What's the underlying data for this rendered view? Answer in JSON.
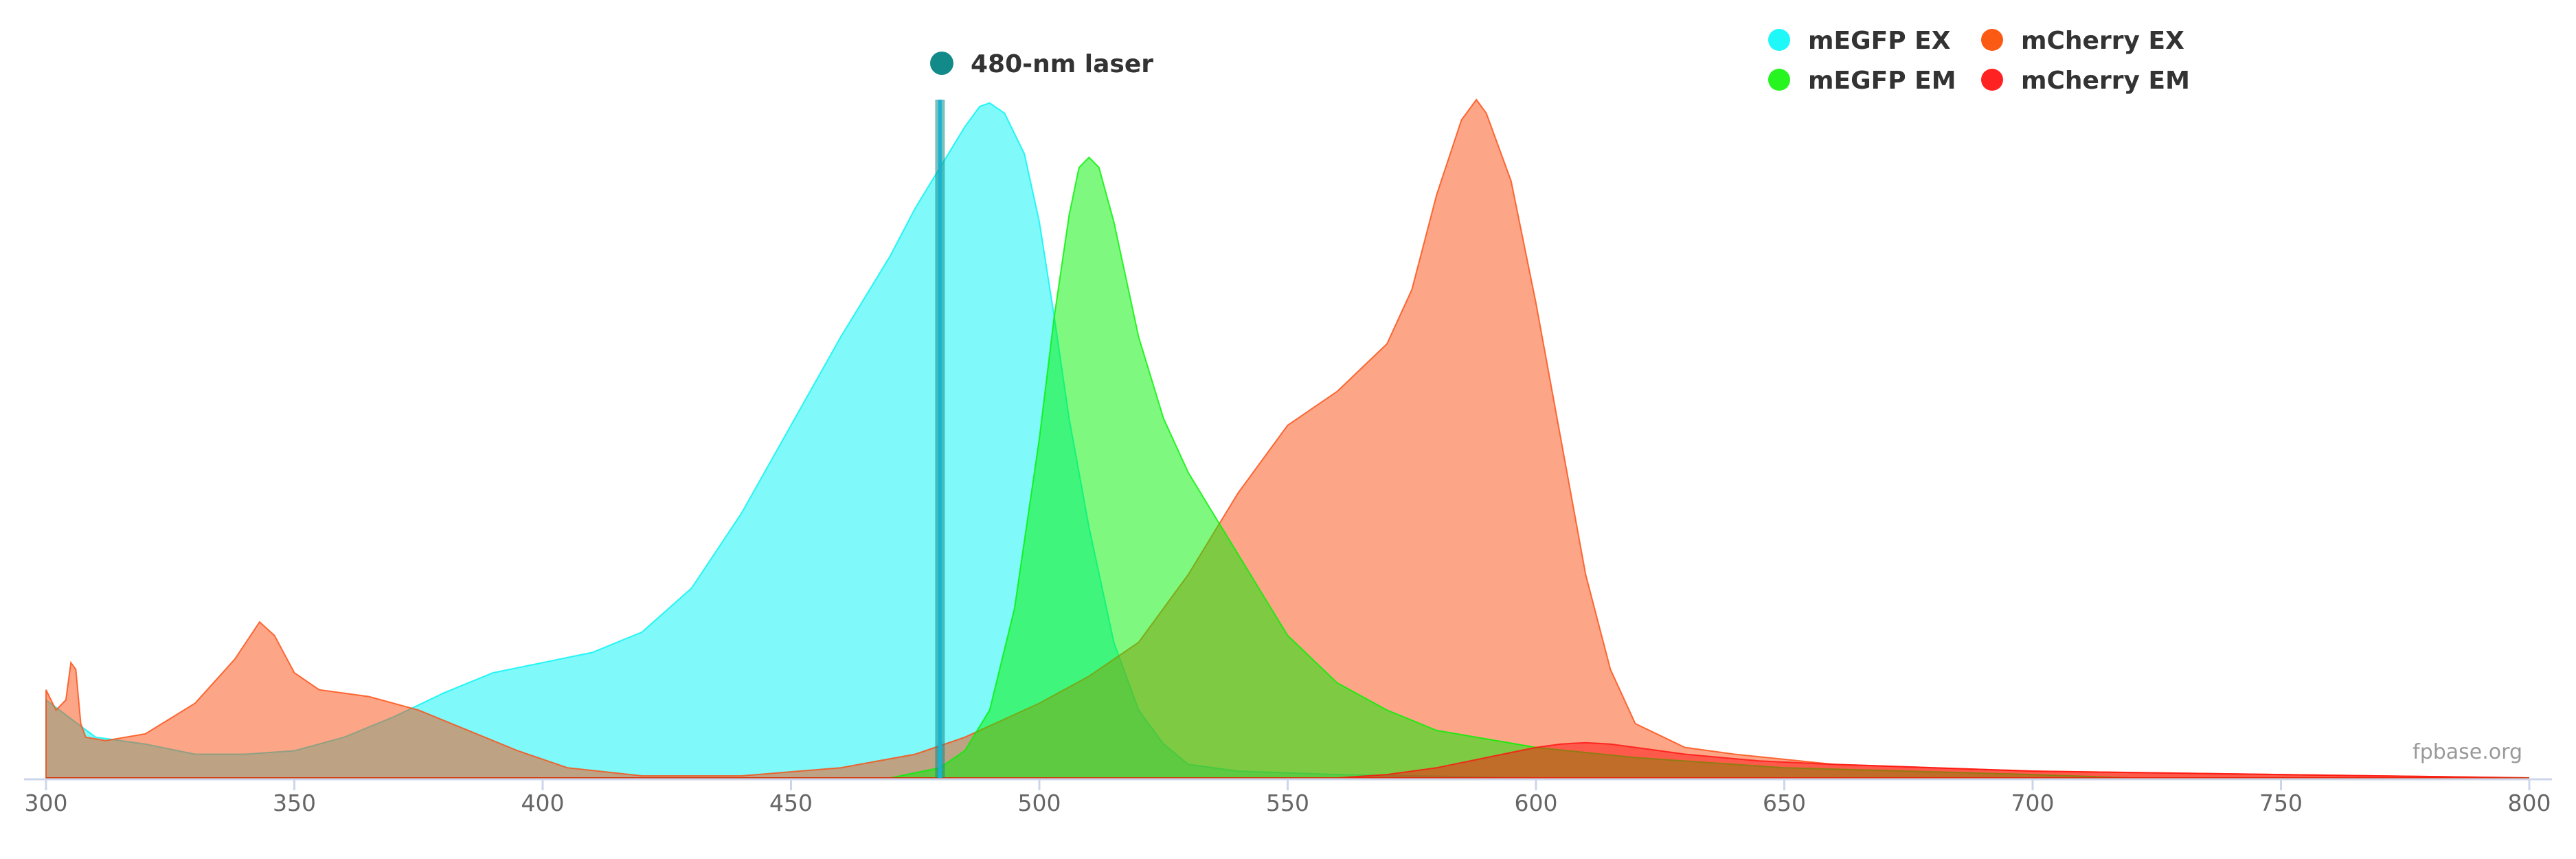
{
  "chart_data": {
    "type": "area",
    "xlim": [
      300,
      800
    ],
    "ylim": [
      0,
      1
    ],
    "x_ticks": [
      "300",
      "350",
      "400",
      "450",
      "500",
      "550",
      "600",
      "650",
      "700",
      "750",
      "800"
    ],
    "credit": "fpbase.org",
    "laser": {
      "name": "480-nm laser",
      "x": 480,
      "color": "#128a8a",
      "line_color": "#19b3d1"
    },
    "legend": [
      {
        "label": "mEGFP EX",
        "color": "#1ff8f8"
      },
      {
        "label": "mCherry EX",
        "color": "#fb5a14"
      },
      {
        "label": "mEGFP EM",
        "color": "#26f520"
      },
      {
        "label": "mCherry EM",
        "color": "#ff2222"
      }
    ],
    "series": [
      {
        "name": "mEGFP EX",
        "color": "#00f4f4",
        "opacity": 0.5,
        "points": [
          [
            300,
            0.115
          ],
          [
            310,
            0.06
          ],
          [
            320,
            0.05
          ],
          [
            330,
            0.035
          ],
          [
            340,
            0.035
          ],
          [
            350,
            0.04
          ],
          [
            360,
            0.06
          ],
          [
            370,
            0.09
          ],
          [
            380,
            0.125
          ],
          [
            390,
            0.155
          ],
          [
            400,
            0.17
          ],
          [
            410,
            0.185
          ],
          [
            420,
            0.215
          ],
          [
            430,
            0.28
          ],
          [
            440,
            0.39
          ],
          [
            450,
            0.52
          ],
          [
            460,
            0.65
          ],
          [
            465,
            0.71
          ],
          [
            470,
            0.77
          ],
          [
            475,
            0.84
          ],
          [
            480,
            0.9
          ],
          [
            485,
            0.96
          ],
          [
            488,
            0.99
          ],
          [
            490,
            0.995
          ],
          [
            493,
            0.98
          ],
          [
            497,
            0.92
          ],
          [
            500,
            0.82
          ],
          [
            503,
            0.68
          ],
          [
            506,
            0.53
          ],
          [
            510,
            0.37
          ],
          [
            515,
            0.2
          ],
          [
            520,
            0.1
          ],
          [
            525,
            0.05
          ],
          [
            530,
            0.02
          ],
          [
            540,
            0.01
          ],
          [
            560,
            0.005
          ],
          [
            600,
            0.0
          ],
          [
            800,
            0.0
          ]
        ]
      },
      {
        "name": "mCherry EX",
        "color": "#fb4c10",
        "opacity": 0.5,
        "points": [
          [
            300,
            0.13
          ],
          [
            302,
            0.1
          ],
          [
            304,
            0.115
          ],
          [
            305,
            0.17
          ],
          [
            306,
            0.16
          ],
          [
            307,
            0.08
          ],
          [
            308,
            0.06
          ],
          [
            312,
            0.055
          ],
          [
            320,
            0.065
          ],
          [
            330,
            0.11
          ],
          [
            338,
            0.175
          ],
          [
            343,
            0.23
          ],
          [
            346,
            0.21
          ],
          [
            350,
            0.155
          ],
          [
            355,
            0.13
          ],
          [
            365,
            0.12
          ],
          [
            375,
            0.1
          ],
          [
            385,
            0.07
          ],
          [
            395,
            0.04
          ],
          [
            405,
            0.015
          ],
          [
            420,
            0.003
          ],
          [
            440,
            0.003
          ],
          [
            460,
            0.015
          ],
          [
            475,
            0.035
          ],
          [
            485,
            0.06
          ],
          [
            500,
            0.11
          ],
          [
            510,
            0.15
          ],
          [
            520,
            0.2
          ],
          [
            530,
            0.3
          ],
          [
            540,
            0.42
          ],
          [
            550,
            0.52
          ],
          [
            560,
            0.57
          ],
          [
            570,
            0.64
          ],
          [
            575,
            0.72
          ],
          [
            580,
            0.86
          ],
          [
            585,
            0.97
          ],
          [
            588,
            1.0
          ],
          [
            590,
            0.98
          ],
          [
            595,
            0.88
          ],
          [
            600,
            0.7
          ],
          [
            605,
            0.5
          ],
          [
            610,
            0.3
          ],
          [
            615,
            0.16
          ],
          [
            620,
            0.08
          ],
          [
            630,
            0.045
          ],
          [
            640,
            0.035
          ],
          [
            660,
            0.02
          ],
          [
            700,
            0.01
          ],
          [
            750,
            0.005
          ],
          [
            800,
            0.0
          ]
        ]
      },
      {
        "name": "mEGFP EM",
        "color": "#00f200",
        "opacity": 0.5,
        "points": [
          [
            300,
            0.0
          ],
          [
            470,
            0.0
          ],
          [
            480,
            0.015
          ],
          [
            485,
            0.04
          ],
          [
            490,
            0.1
          ],
          [
            495,
            0.25
          ],
          [
            500,
            0.5
          ],
          [
            503,
            0.68
          ],
          [
            506,
            0.83
          ],
          [
            508,
            0.9
          ],
          [
            510,
            0.915
          ],
          [
            512,
            0.9
          ],
          [
            515,
            0.82
          ],
          [
            520,
            0.65
          ],
          [
            525,
            0.53
          ],
          [
            530,
            0.45
          ],
          [
            535,
            0.39
          ],
          [
            540,
            0.33
          ],
          [
            545,
            0.27
          ],
          [
            550,
            0.21
          ],
          [
            560,
            0.14
          ],
          [
            570,
            0.1
          ],
          [
            580,
            0.07
          ],
          [
            600,
            0.045
          ],
          [
            620,
            0.03
          ],
          [
            650,
            0.015
          ],
          [
            700,
            0.005
          ],
          [
            720,
            0.0
          ],
          [
            800,
            0.0
          ]
        ]
      },
      {
        "name": "mCherry EM",
        "color": "#ff1010",
        "opacity": 0.5,
        "points": [
          [
            300,
            0.0
          ],
          [
            560,
            0.0
          ],
          [
            570,
            0.005
          ],
          [
            580,
            0.015
          ],
          [
            590,
            0.03
          ],
          [
            600,
            0.045
          ],
          [
            605,
            0.05
          ],
          [
            610,
            0.052
          ],
          [
            615,
            0.05
          ],
          [
            620,
            0.045
          ],
          [
            630,
            0.035
          ],
          [
            645,
            0.025
          ],
          [
            660,
            0.02
          ],
          [
            680,
            0.015
          ],
          [
            700,
            0.01
          ],
          [
            750,
            0.005
          ],
          [
            800,
            0.0
          ]
        ]
      }
    ]
  }
}
